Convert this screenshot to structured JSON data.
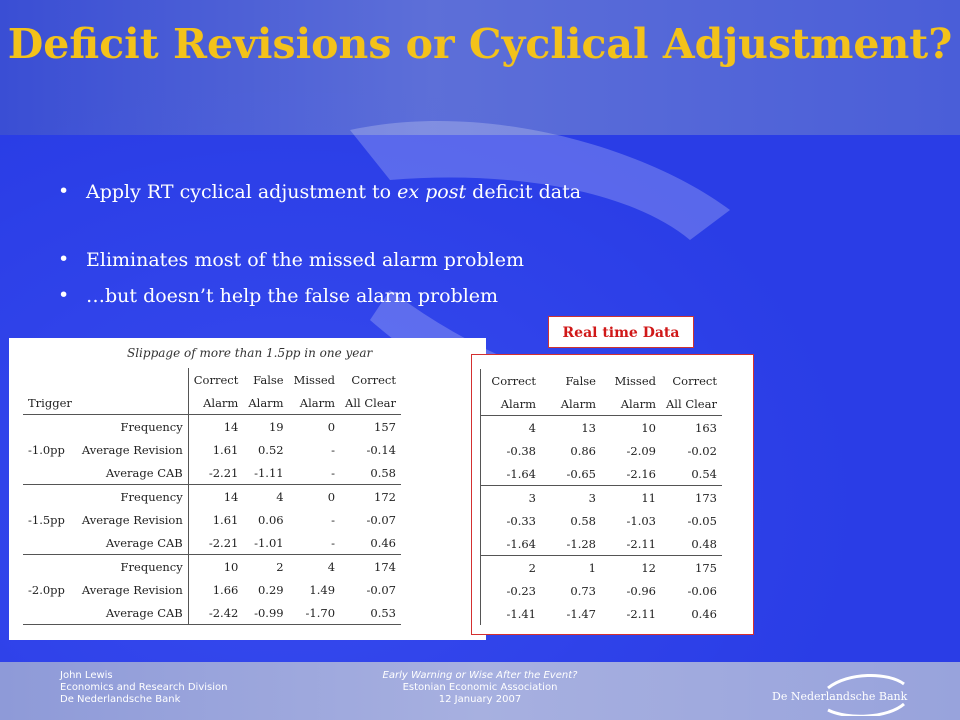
{
  "slide": {
    "title": "Deficit Revisions or Cyclical Adjustment?",
    "bullets": [
      {
        "pre": "Apply RT cyclical adjustment to ",
        "em": "ex post",
        "post": " deficit data"
      },
      {
        "text": "Eliminates most of the missed alarm problem"
      },
      {
        "text": "…but doesn’t help the false alarm problem"
      }
    ],
    "rt_label": "Real time Data"
  },
  "left_table": {
    "caption": "Slippage of more than 1.5pp in one year",
    "headers_top": [
      "",
      "",
      "Correct",
      "False",
      "Missed",
      "Correct"
    ],
    "headers_bottom": [
      "Trigger",
      "",
      "Alarm",
      "Alarm",
      "Alarm",
      "All Clear"
    ],
    "groups": [
      {
        "trigger": "-1.0pp",
        "rows": [
          {
            "label": "Frequency",
            "vals": [
              "14",
              "19",
              "0",
              "157"
            ]
          },
          {
            "label": "Average Revision",
            "vals": [
              "1.61",
              "0.52",
              "-",
              "-0.14"
            ]
          },
          {
            "label": "Average CAB",
            "vals": [
              "-2.21",
              "-1.11",
              "-",
              "0.58"
            ]
          }
        ]
      },
      {
        "trigger": "-1.5pp",
        "rows": [
          {
            "label": "Frequency",
            "vals": [
              "14",
              "4",
              "0",
              "172"
            ]
          },
          {
            "label": "Average Revision",
            "vals": [
              "1.61",
              "0.06",
              "-",
              "-0.07"
            ]
          },
          {
            "label": "Average CAB",
            "vals": [
              "-2.21",
              "-1.01",
              "-",
              "0.46"
            ]
          }
        ]
      },
      {
        "trigger": "-2.0pp",
        "rows": [
          {
            "label": "Frequency",
            "vals": [
              "10",
              "2",
              "4",
              "174"
            ]
          },
          {
            "label": "Average Revision",
            "vals": [
              "1.66",
              "0.29",
              "1.49",
              "-0.07"
            ]
          },
          {
            "label": "Average CAB",
            "vals": [
              "-2.42",
              "-0.99",
              "-1.70",
              "0.53"
            ]
          }
        ]
      }
    ]
  },
  "right_table": {
    "headers_top": [
      "Correct",
      "False",
      "Missed",
      "Correct"
    ],
    "headers_bottom": [
      "Alarm",
      "Alarm",
      "Alarm",
      "All Clear"
    ],
    "groups": [
      [
        [
          "4",
          "13",
          "10",
          "163"
        ],
        [
          "-0.38",
          "0.86",
          "-2.09",
          "-0.02"
        ],
        [
          "-1.64",
          "-0.65",
          "-2.16",
          "0.54"
        ]
      ],
      [
        [
          "3",
          "3",
          "11",
          "173"
        ],
        [
          "-0.33",
          "0.58",
          "-1.03",
          "-0.05"
        ],
        [
          "-1.64",
          "-1.28",
          "-2.11",
          "0.48"
        ]
      ],
      [
        [
          "2",
          "1",
          "12",
          "175"
        ],
        [
          "-0.23",
          "0.73",
          "-0.96",
          "-0.06"
        ],
        [
          "-1.41",
          "-1.47",
          "-2.11",
          "0.46"
        ]
      ]
    ]
  },
  "footer": {
    "left": [
      "John Lewis",
      "Economics and Research Division",
      "De Nederlandsche Bank"
    ],
    "mid": [
      "Early Warning or Wise After the Event?",
      "Estonian Economic Association",
      "12 January 2007"
    ],
    "logo_text": "De Nederlandsche Bank"
  },
  "colors": {
    "title": "#f3c21a",
    "background": "#2a3de6",
    "label_border": "#d01818"
  }
}
